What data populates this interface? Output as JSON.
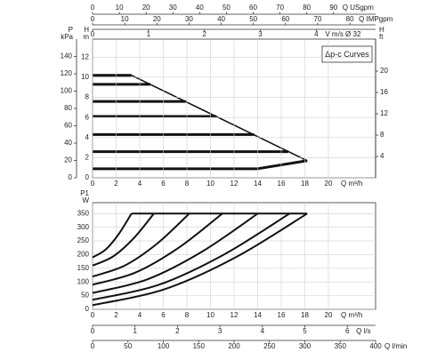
{
  "chart_data": [
    {
      "type": "line",
      "title": "Δp-c Curves",
      "color": "#111111",
      "grid": true,
      "smooth": false,
      "xlabel": "Q m³/h",
      "xlim": [
        0,
        24
      ],
      "xticks": [
        0,
        2,
        4,
        6,
        8,
        10,
        12,
        14,
        16,
        18,
        20
      ],
      "ylabel": "H",
      "yunit": "m",
      "ylim": [
        0,
        13.8
      ],
      "yticks": [
        0,
        2,
        4,
        6,
        8,
        10,
        12
      ],
      "extra_axes": [
        {
          "side": "left",
          "label": "P",
          "unit": "kPa",
          "lim": [
            0,
            160
          ],
          "ticks": [
            0,
            20,
            40,
            60,
            80,
            100,
            120,
            140
          ]
        },
        {
          "side": "right",
          "label": "H",
          "unit": "ft",
          "lim": [
            0,
            26
          ],
          "ticks": [
            4,
            8,
            12,
            16,
            20
          ]
        },
        {
          "side": "top",
          "label": "Q USgpm",
          "lim": [
            0,
            105.7
          ],
          "ticks": [
            0,
            10,
            20,
            30,
            40,
            50,
            60,
            70,
            80,
            90
          ]
        },
        {
          "side": "top",
          "label": "Q IMPgpm",
          "lim": [
            0,
            88
          ],
          "ticks": [
            0,
            10,
            20,
            30,
            40,
            50,
            60,
            70,
            80
          ]
        },
        {
          "side": "top",
          "label": "V m/s Ø 32",
          "lim": [
            0,
            5.06
          ],
          "ticks": [
            0,
            1,
            2,
            3,
            4
          ]
        }
      ],
      "series": [
        {
          "x": [
            0,
            3.3
          ],
          "values": [
            10.2,
            10.2
          ],
          "line_width": 3
        },
        {
          "x": [
            0,
            4.9
          ],
          "values": [
            9.3,
            9.3
          ],
          "line_width": 3
        },
        {
          "x": [
            0,
            7.9
          ],
          "values": [
            7.6,
            7.6
          ],
          "line_width": 3
        },
        {
          "x": [
            0,
            10.5
          ],
          "values": [
            6.1,
            6.1
          ],
          "line_width": 3
        },
        {
          "x": [
            0,
            13.7
          ],
          "values": [
            4.3,
            4.3
          ],
          "line_width": 3
        },
        {
          "x": [
            0,
            16.6
          ],
          "values": [
            2.6,
            2.6
          ],
          "line_width": 3
        },
        {
          "x": [
            0,
            14,
            18.2
          ],
          "values": [
            0.9,
            0.9,
            1.7
          ],
          "line_width": 3
        },
        {
          "x": [
            3.3,
            18.2
          ],
          "values": [
            10.2,
            1.7
          ],
          "line_width": 1.6
        }
      ]
    },
    {
      "type": "line",
      "color": "#111111",
      "grid": true,
      "smooth": true,
      "xlabel": "Q m³/h",
      "xlim": [
        0,
        24
      ],
      "xticks": [
        0,
        2,
        4,
        6,
        8,
        10,
        12,
        14,
        16,
        18,
        20
      ],
      "ylabel": "P1",
      "yunit": "W",
      "ylim": [
        0,
        390
      ],
      "yticks": [
        0,
        50,
        100,
        150,
        200,
        250,
        300,
        350
      ],
      "extra_axes": [
        {
          "side": "bottom",
          "label": "Q l/s",
          "lim": [
            0,
            6.667
          ],
          "ticks": [
            0,
            1,
            2,
            3,
            4,
            5,
            6
          ]
        },
        {
          "side": "bottom",
          "label": "Q l/min",
          "lim": [
            0,
            400
          ],
          "ticks": [
            0,
            50,
            100,
            150,
            200,
            250,
            300,
            350,
            400
          ]
        }
      ],
      "series": [
        {
          "x": [
            0,
            1.1,
            2.2,
            3.3
          ],
          "values": [
            190,
            218,
            274,
            350
          ],
          "line_width": 2
        },
        {
          "x": [
            0,
            1.73,
            3.47,
            5.2
          ],
          "values": [
            160,
            193,
            259,
            350
          ],
          "line_width": 2
        },
        {
          "x": [
            0,
            2.73,
            5.47,
            8.2
          ],
          "values": [
            120,
            160,
            240,
            350
          ],
          "line_width": 2
        },
        {
          "x": [
            0,
            3.67,
            7.33,
            11
          ],
          "values": [
            90,
            135,
            226,
            350
          ],
          "line_width": 2
        },
        {
          "x": [
            0,
            4.67,
            9.33,
            14
          ],
          "values": [
            60,
            110,
            212,
            350
          ],
          "line_width": 2
        },
        {
          "x": [
            0,
            5.57,
            11.13,
            16.7
          ],
          "values": [
            35,
            89,
            200,
            350
          ],
          "line_width": 2
        },
        {
          "x": [
            0,
            6.07,
            12.13,
            18.2
          ],
          "values": [
            15,
            73,
            190,
            350
          ],
          "line_width": 2
        },
        {
          "x": [
            3.3,
            18.2
          ],
          "values": [
            350,
            350
          ],
          "line_width": 2
        }
      ]
    }
  ]
}
